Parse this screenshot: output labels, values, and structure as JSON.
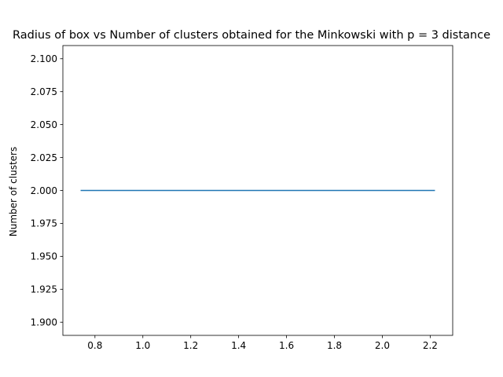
{
  "chart_data": {
    "type": "line",
    "title": "Radius of box vs Number of clusters obtained for the Minkowski with p = 3 distance",
    "xlabel": "",
    "ylabel": "Number of clusters",
    "xlim": [
      0.666,
      2.294
    ],
    "ylim": [
      1.89,
      2.11
    ],
    "xticks": [
      0.8,
      1.0,
      1.2,
      1.4,
      1.6,
      1.8,
      2.0,
      2.2
    ],
    "xtick_labels": [
      "0.8",
      "1.0",
      "1.2",
      "1.4",
      "1.6",
      "1.8",
      "2.0",
      "2.2"
    ],
    "yticks": [
      1.9,
      1.925,
      1.95,
      1.975,
      2.0,
      2.025,
      2.05,
      2.075,
      2.1
    ],
    "ytick_labels": [
      "1.900",
      "1.925",
      "1.950",
      "1.975",
      "2.000",
      "2.025",
      "2.050",
      "2.075",
      "2.100"
    ],
    "grid": false,
    "series": [
      {
        "color": "#1f77b4",
        "x": [
          0.74,
          2.22
        ],
        "y": [
          2.0,
          2.0
        ]
      }
    ]
  }
}
